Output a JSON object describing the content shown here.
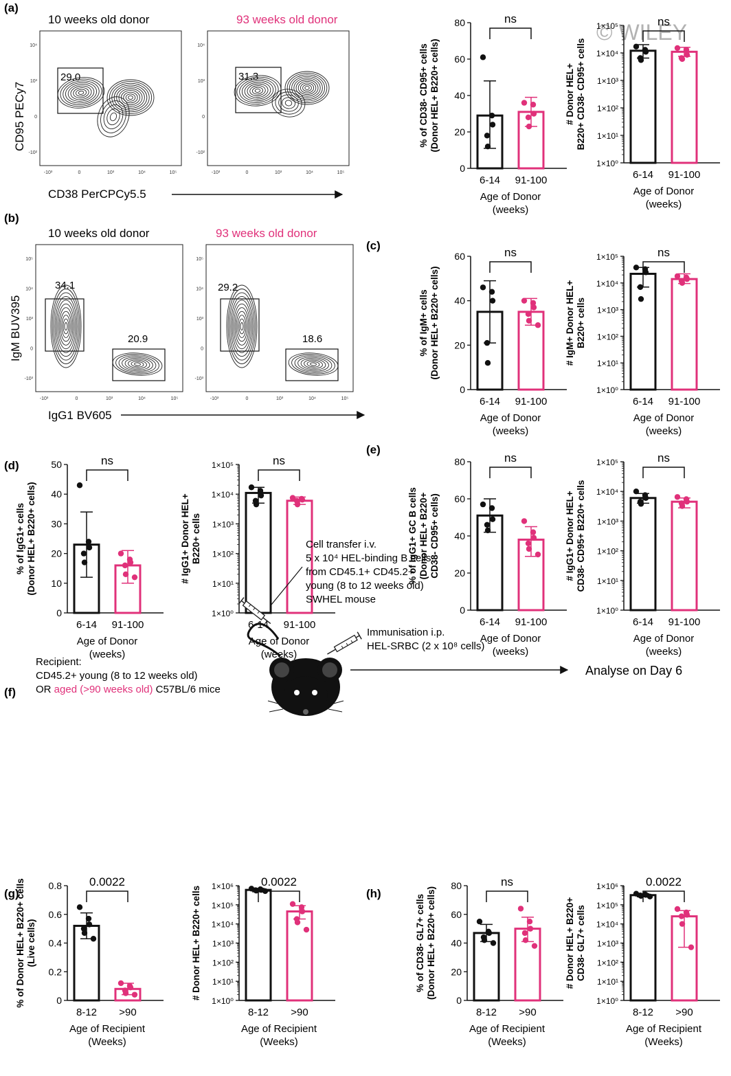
{
  "watermark": "© WILEY",
  "colors": {
    "young": "#111111",
    "aged": "#e0317a",
    "contour": "#222222"
  },
  "panel_labels": [
    "(a)",
    "(b)",
    "(c)",
    "(d)",
    "(e)",
    "(f)",
    "(g)",
    "(h)"
  ],
  "flow_a": {
    "donor_young": "10 weeks old donor",
    "donor_aged": "93 weeks old donor",
    "y_label": "CD95 PECy7",
    "x_label": "CD38 PerCPCy5.5",
    "gate_young": "29.0",
    "gate_aged": "31.3",
    "y_ticks": [
      "10⁴",
      "10³",
      "0",
      "-10²"
    ],
    "x_ticks": [
      "-10³",
      "0",
      "10³",
      "10⁴",
      "10⁵"
    ]
  },
  "flow_b": {
    "donor_young": "10 weeks old donor",
    "donor_aged": "93 weeks old donor",
    "y_label": "IgM BUV395",
    "x_label": "IgG1 BV605",
    "gate_young_igm": "34.1",
    "gate_young_igg1": "20.9",
    "gate_aged_igm": "29.2",
    "gate_aged_igg1": "18.6",
    "y_ticks": [
      "10⁵",
      "10⁴",
      "10³",
      "0",
      "-10³"
    ],
    "x_ticks": [
      "-10³",
      "0",
      "10³",
      "10⁴",
      "10⁵"
    ]
  },
  "schematic": {
    "transfer_lines": [
      "Cell transfer i.v.",
      "5 x 10⁴ HEL-binding B cells",
      "from CD45.1+ CD45.2+",
      "young (8 to 12 weeks old)",
      "SWHEL mouse"
    ],
    "immunisation_lines": [
      "Immunisation i.p.",
      "HEL-SRBC (2 x 10⁸ cells)"
    ],
    "recipient_line1": "Recipient:",
    "recipient_line2": "CD45.2+ young (8 to 12 weeks old)",
    "recipient_or": "OR ",
    "recipient_aged": "aged (>90 weeks old)",
    "recipient_tail": " C57BL/6 mice",
    "analyse": "Analyse on Day 6"
  },
  "chart_data": [
    {
      "id": "a1",
      "type": "bar",
      "scale": "linear",
      "ylim": [
        0,
        80
      ],
      "yticks": [
        0,
        20,
        40,
        60,
        80
      ],
      "ylabel": [
        "% of CD38- CD95+ cells",
        "(Donor HEL+ B220+ cells)"
      ],
      "categories": [
        "6-14",
        "91-100"
      ],
      "xlabel": [
        "Age of Donor",
        "(weeks)"
      ],
      "sig": "ns",
      "means": [
        29,
        31
      ],
      "sd": [
        [
          11,
          48
        ],
        [
          23,
          39
        ]
      ],
      "points": [
        [
          61,
          29,
          24,
          18,
          12
        ],
        [
          36,
          35,
          30,
          28,
          23
        ]
      ]
    },
    {
      "id": "a2",
      "type": "bar",
      "scale": "log",
      "ylim": [
        0,
        5
      ],
      "yticks": [
        "1×10⁰",
        "1×10¹",
        "1×10²",
        "1×10³",
        "1×10⁴",
        "1×10⁵"
      ],
      "ylabel": [
        "# Donor HEL+",
        "B220+ CD38- CD95+ cells"
      ],
      "categories": [
        "6-14",
        "91-100"
      ],
      "xlabel": [
        "Age of Donor",
        "(weeks)"
      ],
      "sig": "ns",
      "means": [
        12000,
        11000
      ],
      "sd": [
        [
          6500,
          20000
        ],
        [
          7500,
          16000
        ]
      ],
      "points": [
        [
          17000,
          13000,
          11000,
          6500,
          5500
        ],
        [
          15000,
          13000,
          8500,
          6500,
          6000
        ]
      ]
    },
    {
      "id": "c1",
      "type": "bar",
      "scale": "linear",
      "ylim": [
        0,
        60
      ],
      "yticks": [
        0,
        20,
        40,
        60
      ],
      "ylabel": [
        "% of IgM+ cells",
        "(Donor HEL+ B220+ cells)"
      ],
      "categories": [
        "6-14",
        "91-100"
      ],
      "xlabel": [
        "Age of Donor",
        "(weeks)"
      ],
      "sig": "ns",
      "means": [
        35,
        35
      ],
      "sd": [
        [
          21,
          49
        ],
        [
          29,
          41
        ]
      ],
      "points": [
        [
          46,
          44,
          40,
          21,
          12
        ],
        [
          40,
          39,
          37,
          34,
          31,
          29
        ]
      ]
    },
    {
      "id": "c2",
      "type": "bar",
      "scale": "log",
      "ylim": [
        0,
        5
      ],
      "yticks": [
        "1×10⁰",
        "1×10¹",
        "1×10²",
        "1×10³",
        "1×10⁴",
        "1×10⁵"
      ],
      "ylabel": [
        "# IgM+ Donor HEL+",
        "B220+ cells"
      ],
      "categories": [
        "6-14",
        "91-100"
      ],
      "xlabel": [
        "Age of Donor",
        "(weeks)"
      ],
      "sig": "ns",
      "means": [
        22000,
        14000
      ],
      "sd": [
        [
          7000,
          38000
        ],
        [
          9500,
          22000
        ]
      ],
      "points": [
        [
          38000,
          33000,
          25000,
          7000,
          2500
        ],
        [
          18000,
          16000,
          14000,
          12000,
          10000
        ]
      ]
    },
    {
      "id": "d1",
      "type": "bar",
      "scale": "linear",
      "ylim": [
        0,
        50
      ],
      "yticks": [
        0,
        10,
        20,
        30,
        40,
        50
      ],
      "ylabel": [
        "% of IgG1+ cells",
        "(Donor HEL+ B220+ cells)"
      ],
      "categories": [
        "6-14",
        "91-100"
      ],
      "xlabel": [
        "Age of Donor",
        "(weeks)"
      ],
      "sig": "ns",
      "means": [
        23,
        16
      ],
      "sd": [
        [
          12,
          34
        ],
        [
          10,
          21
        ]
      ],
      "points": [
        [
          43,
          24,
          22,
          20,
          17
        ],
        [
          20,
          18,
          17,
          16,
          13,
          12
        ]
      ]
    },
    {
      "id": "d2",
      "type": "bar",
      "scale": "log",
      "ylim": [
        0,
        5
      ],
      "yticks": [
        "1×10⁰",
        "1×10¹",
        "1×10²",
        "1×10³",
        "1×10⁴",
        "1×10⁵"
      ],
      "ylabel": [
        "# IgG1+ Donor HEL+",
        "B220+ cells"
      ],
      "categories": [
        "6-14",
        "91-100"
      ],
      "xlabel": [
        "Age of Donor",
        "(weeks)"
      ],
      "sig": "ns",
      "means": [
        11000,
        6000
      ],
      "sd": [
        [
          5000,
          17000
        ],
        [
          4500,
          8000
        ]
      ],
      "points": [
        [
          17000,
          13000,
          9000,
          6000,
          4500
        ],
        [
          7500,
          7000,
          6500,
          6000,
          4500
        ]
      ]
    },
    {
      "id": "e1",
      "type": "bar",
      "scale": "linear",
      "ylim": [
        0,
        80
      ],
      "yticks": [
        0,
        20,
        40,
        60,
        80
      ],
      "ylabel": [
        "% of IgG1+ GC B cells",
        "(Donor HEL+ B220+",
        "CD38- CD95+ cells)"
      ],
      "categories": [
        "6-14",
        "91-100"
      ],
      "xlabel": [
        "Age of Donor",
        "(weeks)"
      ],
      "sig": "ns",
      "means": [
        51,
        38
      ],
      "sd": [
        [
          42,
          60
        ],
        [
          29,
          45
        ]
      ],
      "points": [
        [
          57,
          55,
          49,
          46,
          43
        ],
        [
          48,
          42,
          39,
          36,
          33,
          30
        ]
      ]
    },
    {
      "id": "e2",
      "type": "bar",
      "scale": "log",
      "ylim": [
        0,
        5
      ],
      "yticks": [
        "1×10⁰",
        "1×10¹",
        "1×10²",
        "1×10³",
        "1×10⁴",
        "1×10⁵"
      ],
      "ylabel": [
        "# IgG1+ Donor HEL+",
        "CD38- CD95+ B220+ cells"
      ],
      "categories": [
        "6-14",
        "91-100"
      ],
      "xlabel": [
        "Age of Donor",
        "(weeks)"
      ],
      "sig": "ns",
      "means": [
        6000,
        4500
      ],
      "sd": [
        [
          4000,
          8500
        ],
        [
          2800,
          6000
        ]
      ],
      "points": [
        [
          10000,
          7500,
          6000,
          4500,
          3800
        ],
        [
          6500,
          5500,
          4500,
          4000,
          3200
        ]
      ]
    },
    {
      "id": "g1",
      "type": "bar",
      "scale": "linear",
      "ylim": [
        0,
        0.8
      ],
      "yticks": [
        "0",
        "0.2",
        "0.4",
        "0.6",
        "0.8"
      ],
      "ylabel": [
        "% of Donor HEL+ B220+ cells",
        "(Live cells)"
      ],
      "categories": [
        "8-12",
        ">90"
      ],
      "xlabel": [
        "Age of Recipient",
        "(Weeks)"
      ],
      "sig": "0.0022",
      "means": [
        0.52,
        0.08
      ],
      "sd": [
        [
          0.43,
          0.61
        ],
        [
          0.04,
          0.12
        ]
      ],
      "points": [
        [
          0.65,
          0.57,
          0.53,
          0.5,
          0.47,
          0.43
        ],
        [
          0.12,
          0.1,
          0.09,
          0.07,
          0.05,
          0.04
        ]
      ]
    },
    {
      "id": "g2",
      "type": "bar",
      "scale": "log",
      "ylim": [
        0,
        6
      ],
      "yticks": [
        "1×10⁰",
        "1×10¹",
        "1×10²",
        "1×10³",
        "1×10⁴",
        "1×10⁵",
        "1×10⁶"
      ],
      "ylabel": [
        "# Donor HEL+ B220+ cells"
      ],
      "categories": [
        "8-12",
        ">90"
      ],
      "xlabel": [
        "Age of Recipient",
        "(Weeks)"
      ],
      "sig": "0.0022",
      "means": [
        600000,
        45000
      ],
      "sd": [
        [
          480000,
          720000
        ],
        [
          18000,
          90000
        ]
      ],
      "points": [
        [
          700000,
          650000,
          600000,
          580000,
          550000,
          520000
        ],
        [
          110000,
          75000,
          45000,
          18000,
          12000,
          5000
        ]
      ]
    },
    {
      "id": "h1",
      "type": "bar",
      "scale": "linear",
      "ylim": [
        0,
        80
      ],
      "yticks": [
        0,
        20,
        40,
        60,
        80
      ],
      "ylabel": [
        "% of CD38- GL7+ cells",
        "(Donor HEL+ B220+ cells)"
      ],
      "categories": [
        "8-12",
        ">90"
      ],
      "xlabel": [
        "Age of Recipient",
        "(Weeks)"
      ],
      "sig": "ns",
      "means": [
        47,
        50
      ],
      "sd": [
        [
          41,
          53
        ],
        [
          41,
          58
        ]
      ],
      "points": [
        [
          55,
          48,
          47,
          44,
          42,
          40
        ],
        [
          64,
          55,
          50,
          47,
          42,
          38
        ]
      ]
    },
    {
      "id": "h2",
      "type": "bar",
      "scale": "log",
      "ylim": [
        0,
        6
      ],
      "yticks": [
        "1×10⁰",
        "1×10¹",
        "1×10²",
        "1×10³",
        "1×10⁴",
        "1×10⁵",
        "1×10⁶"
      ],
      "ylabel": [
        "# Donor HEL+ B220+",
        "CD38- GL7+ cells"
      ],
      "categories": [
        "8-12",
        ">90"
      ],
      "xlabel": [
        "Age of Recipient",
        "(Weeks)"
      ],
      "sig": "0.0022",
      "means": [
        320000,
        25000
      ],
      "sd": [
        [
          260000,
          380000
        ],
        [
          600,
          50000
        ]
      ],
      "points": [
        [
          380000,
          350000,
          330000,
          310000,
          290000,
          270000
        ],
        [
          60000,
          40000,
          30000,
          25000,
          10000,
          600
        ]
      ]
    }
  ]
}
